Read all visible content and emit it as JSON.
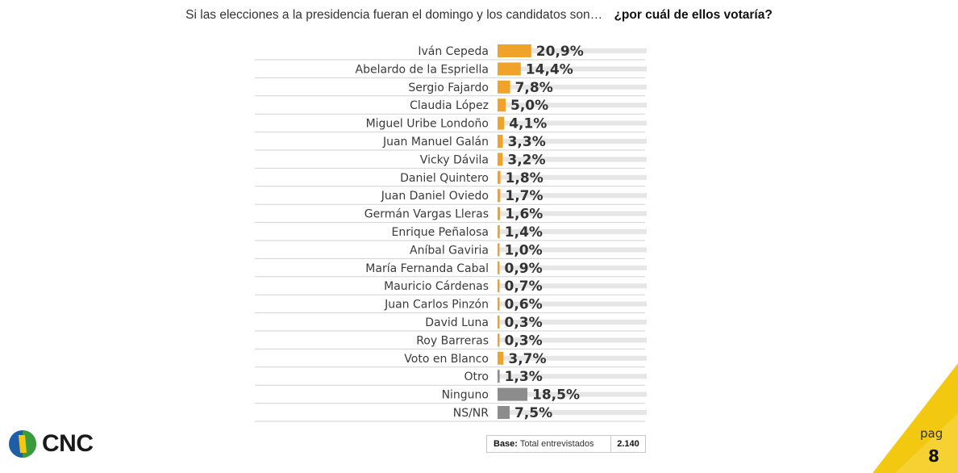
{
  "title": {
    "question": "Si las elecciones a la presidencia fueran el domingo y los candidatos son…",
    "emphasis": "¿por cuál de ellos votaría?"
  },
  "chart_data": {
    "type": "bar",
    "orientation": "horizontal",
    "categories": [
      "Iván Cepeda",
      "Abelardo de la Espriella",
      "Sergio Fajardo",
      "Claudia López",
      "Miguel Uribe Londoño",
      "Juan Manuel Galán",
      "Vicky Dávila",
      "Daniel Quintero",
      "Juan Daniel Oviedo",
      "Germán Vargas Lleras",
      "Enrique Peñalosa",
      "Aníbal Gaviria",
      "María Fernanda Cabal",
      "Mauricio Cárdenas",
      "Juan Carlos Pinzón",
      "David Luna",
      "Roy Barreras",
      "Voto en Blanco",
      "Otro",
      "Ninguno",
      "NS/NR"
    ],
    "values": [
      20.9,
      14.4,
      7.8,
      5.0,
      4.1,
      3.3,
      3.2,
      1.8,
      1.7,
      1.6,
      1.4,
      1.0,
      0.9,
      0.7,
      0.6,
      0.3,
      0.3,
      3.7,
      1.3,
      18.5,
      7.5
    ],
    "value_labels": [
      "20,9%",
      "14,4%",
      "7,8%",
      "5,0%",
      "4,1%",
      "3,3%",
      "3,2%",
      "1,8%",
      "1,7%",
      "1,6%",
      "1,4%",
      "1,0%",
      "0,9%",
      "0,7%",
      "0,6%",
      "0,3%",
      "0,3%",
      "3,7%",
      "1,3%",
      "18,5%",
      "7,5%"
    ],
    "bar_colors": [
      "#f0a32a",
      "#f0a32a",
      "#f0a32a",
      "#f0a32a",
      "#f0a32a",
      "#f0a32a",
      "#f0a32a",
      "#f0a32a",
      "#f0a32a",
      "#f0a32a",
      "#f0a32a",
      "#f0a32a",
      "#f0a32a",
      "#f0a32a",
      "#f0a32a",
      "#f0a32a",
      "#f0a32a",
      "#f0a32a",
      "#8c8c8c",
      "#8c8c8c",
      "#8c8c8c"
    ],
    "track_color": "#e6e6e6",
    "xlim": [
      0,
      100
    ]
  },
  "base": {
    "label": "Base:",
    "text": "Total entrevistados",
    "value": "2.140"
  },
  "logo": {
    "text": "CNC"
  },
  "page": {
    "label": "pag",
    "number": "8"
  },
  "colors": {
    "accent_yellow": "#f2c811",
    "orange": "#f0a32a",
    "gray": "#8c8c8c",
    "logo_blue": "#1e5ea8",
    "logo_green": "#3a9a3c"
  }
}
